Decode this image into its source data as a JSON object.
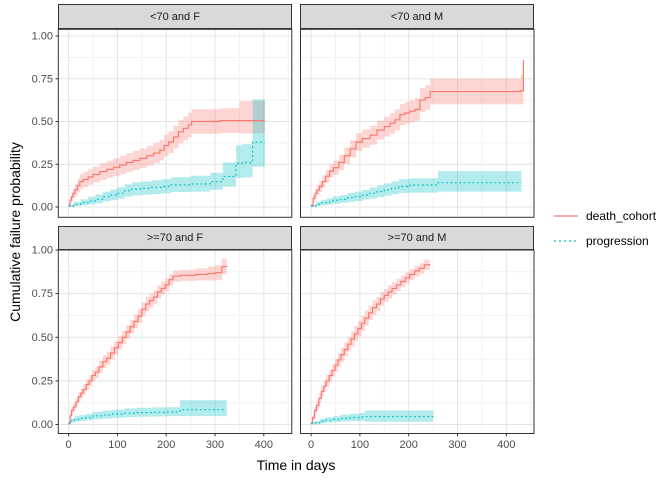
{
  "chart_data": {
    "type": "line",
    "subtype": "step-cumulative-incidence-with-ci-ribbons",
    "xlabel": "Time in days",
    "ylabel": "Cumulative failure probability",
    "xlim": [
      0,
      435
    ],
    "ylim": [
      0,
      1
    ],
    "x_ticks": [
      0,
      100,
      200,
      300,
      400
    ],
    "x_minor_ticks": [
      50,
      150,
      250,
      350,
      450
    ],
    "y_ticks": [
      0,
      0.25,
      0.5,
      0.75,
      1
    ],
    "y_minor_ticks": [
      0.125,
      0.375,
      0.625,
      0.875
    ],
    "y_tick_labels": [
      "0.00",
      "0.25",
      "0.50",
      "0.75",
      "1.00"
    ],
    "grid": true,
    "legend_position": "right",
    "facet_layout": [
      [
        "<70 and F",
        "<70 and M"
      ],
      [
        ">=70 and F",
        ">=70 and M"
      ]
    ],
    "series_style": [
      {
        "name": "death_cohort",
        "label": "death_cohort",
        "color": "#F8766D",
        "fill": "rgba(248,118,109,0.30)",
        "linestyle": "solid"
      },
      {
        "name": "progression",
        "label": "progression",
        "color": "#00BFC4",
        "fill": "rgba(0,191,196,0.30)",
        "linestyle": "dotted"
      }
    ],
    "facets": [
      {
        "label": "<70 and F",
        "series": [
          {
            "name": "death_cohort",
            "t": [
              0,
              3,
              6,
              9,
              13,
              18,
              23,
              30,
              40,
              50,
              64,
              78,
              92,
              105,
              118,
              132,
              146,
              160,
              174,
              187,
              196,
              205,
              215,
              225,
              235,
              245,
              252,
              310,
              350,
              402
            ],
            "est": [
              0.01,
              0.04,
              0.06,
              0.08,
              0.1,
              0.125,
              0.148,
              0.16,
              0.175,
              0.19,
              0.207,
              0.22,
              0.232,
              0.246,
              0.26,
              0.272,
              0.285,
              0.3,
              0.315,
              0.333,
              0.36,
              0.38,
              0.41,
              0.44,
              0.46,
              0.48,
              0.5,
              0.505,
              0.505,
              0.505
            ],
            "lo": [
              0.004,
              0.02,
              0.035,
              0.05,
              0.065,
              0.085,
              0.105,
              0.115,
              0.13,
              0.143,
              0.158,
              0.17,
              0.18,
              0.193,
              0.205,
              0.216,
              0.228,
              0.242,
              0.256,
              0.272,
              0.298,
              0.316,
              0.344,
              0.372,
              0.39,
              0.408,
              0.428,
              0.432,
              0.43,
              0.43
            ],
            "hi": [
              0.016,
              0.06,
              0.085,
              0.11,
              0.135,
              0.165,
              0.191,
              0.205,
              0.22,
              0.237,
              0.256,
              0.27,
              0.284,
              0.299,
              0.315,
              0.328,
              0.342,
              0.358,
              0.374,
              0.394,
              0.422,
              0.444,
              0.476,
              0.508,
              0.53,
              0.552,
              0.572,
              0.578,
              0.62,
              0.62
            ]
          },
          {
            "name": "progression",
            "t": [
              0,
              10,
              25,
              40,
              55,
              70,
              85,
              100,
              115,
              130,
              150,
              170,
              190,
              210,
              250,
              290,
              316,
              343,
              356,
              377,
              402
            ],
            "est": [
              0.005,
              0.015,
              0.025,
              0.035,
              0.045,
              0.06,
              0.07,
              0.08,
              0.095,
              0.105,
              0.11,
              0.115,
              0.12,
              0.13,
              0.135,
              0.148,
              0.179,
              0.255,
              0.26,
              0.379,
              0.379
            ],
            "lo": [
              0.0,
              0.005,
              0.01,
              0.015,
              0.022,
              0.032,
              0.04,
              0.048,
              0.06,
              0.068,
              0.072,
              0.076,
              0.08,
              0.088,
              0.09,
              0.1,
              0.12,
              0.17,
              0.173,
              0.235,
              0.235
            ],
            "hi": [
              0.012,
              0.03,
              0.045,
              0.06,
              0.073,
              0.09,
              0.102,
              0.115,
              0.133,
              0.145,
              0.15,
              0.157,
              0.163,
              0.175,
              0.183,
              0.2,
              0.26,
              0.36,
              0.368,
              0.63,
              0.63
            ]
          }
        ]
      },
      {
        "label": "<70 and M",
        "series": [
          {
            "name": "death_cohort",
            "t": [
              0,
              4,
              8,
              12,
              17,
              23,
              30,
              38,
              46,
              57,
              68,
              80,
              92,
              105,
              121,
              135,
              150,
              162,
              172,
              182,
              192,
              202,
              213,
              223,
              234,
              244,
              430,
              435
            ],
            "est": [
              0.01,
              0.05,
              0.08,
              0.1,
              0.12,
              0.15,
              0.18,
              0.21,
              0.23,
              0.26,
              0.3,
              0.34,
              0.38,
              0.4,
              0.42,
              0.45,
              0.47,
              0.49,
              0.51,
              0.54,
              0.55,
              0.56,
              0.57,
              0.625,
              0.64,
              0.675,
              0.68,
              0.86
            ],
            "lo": [
              0.002,
              0.03,
              0.055,
              0.07,
              0.088,
              0.115,
              0.142,
              0.17,
              0.188,
              0.215,
              0.252,
              0.29,
              0.328,
              0.346,
              0.365,
              0.394,
              0.412,
              0.43,
              0.45,
              0.478,
              0.486,
              0.495,
              0.504,
              0.555,
              0.568,
              0.6,
              0.6,
              0.6
            ],
            "hi": [
              0.018,
              0.07,
              0.105,
              0.13,
              0.152,
              0.185,
              0.218,
              0.25,
              0.272,
              0.305,
              0.348,
              0.39,
              0.432,
              0.454,
              0.475,
              0.506,
              0.528,
              0.55,
              0.57,
              0.602,
              0.614,
              0.625,
              0.636,
              0.695,
              0.712,
              0.75,
              0.775,
              0.775
            ]
          },
          {
            "name": "progression",
            "t": [
              0,
              10,
              20,
              32,
              45,
              60,
              75,
              90,
              105,
              120,
              135,
              150,
              165,
              180,
              203,
              260,
              431
            ],
            "est": [
              0.005,
              0.015,
              0.025,
              0.03,
              0.04,
              0.045,
              0.055,
              0.06,
              0.07,
              0.08,
              0.09,
              0.1,
              0.11,
              0.12,
              0.129,
              0.142,
              0.142
            ],
            "lo": [
              0.0,
              0.005,
              0.01,
              0.014,
              0.02,
              0.025,
              0.03,
              0.035,
              0.044,
              0.05,
              0.058,
              0.066,
              0.074,
              0.082,
              0.084,
              0.089,
              0.089
            ],
            "hi": [
              0.012,
              0.03,
              0.042,
              0.05,
              0.062,
              0.07,
              0.082,
              0.09,
              0.1,
              0.114,
              0.126,
              0.138,
              0.15,
              0.162,
              0.168,
              0.21,
              0.21
            ]
          }
        ]
      },
      {
        "label": ">=70 and F",
        "series": [
          {
            "name": "death_cohort",
            "t": [
              0,
              3,
              6,
              10,
              15,
              20,
              25,
              30,
              36,
              42,
              48,
              55,
              62,
              70,
              78,
              86,
              94,
              102,
              110,
              118,
              126,
              134,
              142,
              150,
              158,
              166,
              174,
              182,
              190,
              198,
              206,
              214,
              230,
              260,
              285,
              300,
              314,
              324
            ],
            "est": [
              0.01,
              0.05,
              0.08,
              0.1,
              0.13,
              0.16,
              0.18,
              0.2,
              0.23,
              0.25,
              0.28,
              0.3,
              0.33,
              0.36,
              0.38,
              0.41,
              0.44,
              0.47,
              0.5,
              0.53,
              0.56,
              0.59,
              0.62,
              0.66,
              0.69,
              0.71,
              0.73,
              0.76,
              0.78,
              0.8,
              0.83,
              0.85,
              0.855,
              0.86,
              0.865,
              0.87,
              0.905,
              0.91
            ],
            "lo": [
              0.002,
              0.035,
              0.06,
              0.078,
              0.105,
              0.133,
              0.152,
              0.17,
              0.2,
              0.218,
              0.247,
              0.266,
              0.295,
              0.324,
              0.343,
              0.372,
              0.401,
              0.43,
              0.46,
              0.49,
              0.52,
              0.55,
              0.58,
              0.62,
              0.65,
              0.67,
              0.691,
              0.722,
              0.743,
              0.764,
              0.796,
              0.818,
              0.823,
              0.826,
              0.825,
              0.827,
              0.86,
              0.865
            ],
            "hi": [
              0.018,
              0.065,
              0.1,
              0.122,
              0.155,
              0.187,
              0.208,
              0.23,
              0.26,
              0.282,
              0.313,
              0.334,
              0.365,
              0.396,
              0.417,
              0.448,
              0.479,
              0.51,
              0.54,
              0.57,
              0.6,
              0.63,
              0.66,
              0.7,
              0.73,
              0.75,
              0.769,
              0.798,
              0.817,
              0.836,
              0.864,
              0.882,
              0.887,
              0.894,
              0.905,
              0.913,
              0.95,
              0.955
            ]
          },
          {
            "name": "progression",
            "t": [
              0,
              5,
              12,
              22,
              35,
              50,
              70,
              90,
              115,
              140,
              170,
              200,
              228,
              324
            ],
            "est": [
              0.005,
              0.02,
              0.03,
              0.035,
              0.04,
              0.05,
              0.055,
              0.06,
              0.065,
              0.068,
              0.07,
              0.072,
              0.085,
              0.085
            ],
            "lo": [
              0.0,
              0.01,
              0.016,
              0.02,
              0.024,
              0.03,
              0.034,
              0.038,
              0.042,
              0.044,
              0.046,
              0.048,
              0.048,
              0.048
            ],
            "hi": [
              0.012,
              0.034,
              0.048,
              0.054,
              0.06,
              0.073,
              0.08,
              0.086,
              0.092,
              0.096,
              0.098,
              0.1,
              0.14,
              0.14
            ]
          }
        ]
      },
      {
        "label": ">=70 and M",
        "series": [
          {
            "name": "death_cohort",
            "t": [
              0,
              3,
              7,
              11,
              16,
              21,
              26,
              31,
              37,
              43,
              49,
              55,
              61,
              68,
              75,
              82,
              89,
              96,
              103,
              110,
              118,
              126,
              134,
              142,
              150,
              158,
              166,
              175,
              184,
              193,
              202,
              212,
              222,
              232,
              243
            ],
            "est": [
              0.01,
              0.04,
              0.08,
              0.11,
              0.15,
              0.19,
              0.22,
              0.25,
              0.28,
              0.31,
              0.34,
              0.37,
              0.4,
              0.43,
              0.46,
              0.49,
              0.52,
              0.55,
              0.58,
              0.61,
              0.64,
              0.67,
              0.69,
              0.72,
              0.74,
              0.76,
              0.78,
              0.8,
              0.82,
              0.84,
              0.86,
              0.88,
              0.895,
              0.915,
              0.92
            ],
            "lo": [
              0.002,
              0.025,
              0.06,
              0.085,
              0.122,
              0.16,
              0.188,
              0.216,
              0.245,
              0.274,
              0.302,
              0.33,
              0.36,
              0.388,
              0.418,
              0.446,
              0.476,
              0.506,
              0.536,
              0.566,
              0.598,
              0.628,
              0.65,
              0.68,
              0.702,
              0.722,
              0.744,
              0.765,
              0.786,
              0.808,
              0.829,
              0.85,
              0.865,
              0.885,
              0.89
            ],
            "hi": [
              0.018,
              0.055,
              0.1,
              0.135,
              0.178,
              0.22,
              0.252,
              0.284,
              0.315,
              0.346,
              0.378,
              0.41,
              0.44,
              0.472,
              0.502,
              0.534,
              0.564,
              0.594,
              0.624,
              0.654,
              0.682,
              0.712,
              0.73,
              0.76,
              0.778,
              0.798,
              0.816,
              0.835,
              0.854,
              0.872,
              0.891,
              0.91,
              0.925,
              0.945,
              0.95
            ]
          },
          {
            "name": "progression",
            "t": [
              0,
              8,
              18,
              30,
              45,
              60,
              80,
              100,
              110,
              250
            ],
            "est": [
              0.005,
              0.01,
              0.02,
              0.025,
              0.03,
              0.035,
              0.04,
              0.043,
              0.045,
              0.045
            ],
            "lo": [
              0.0,
              0.002,
              0.008,
              0.011,
              0.014,
              0.017,
              0.02,
              0.022,
              0.016,
              0.016
            ],
            "hi": [
              0.012,
              0.02,
              0.034,
              0.041,
              0.048,
              0.055,
              0.062,
              0.066,
              0.08,
              0.08
            ]
          }
        ]
      }
    ]
  },
  "theme": {
    "panel_background": "#FFFFFF",
    "grid_major": "#E4E4E4",
    "grid_minor": "#F2F2F2",
    "panel_border": "#333333",
    "strip_background": "#D9D9D9",
    "strip_border": "#333333",
    "tick_text": "#4D4D4D",
    "axis_title": "#000000",
    "tick_mark": "#333333"
  }
}
